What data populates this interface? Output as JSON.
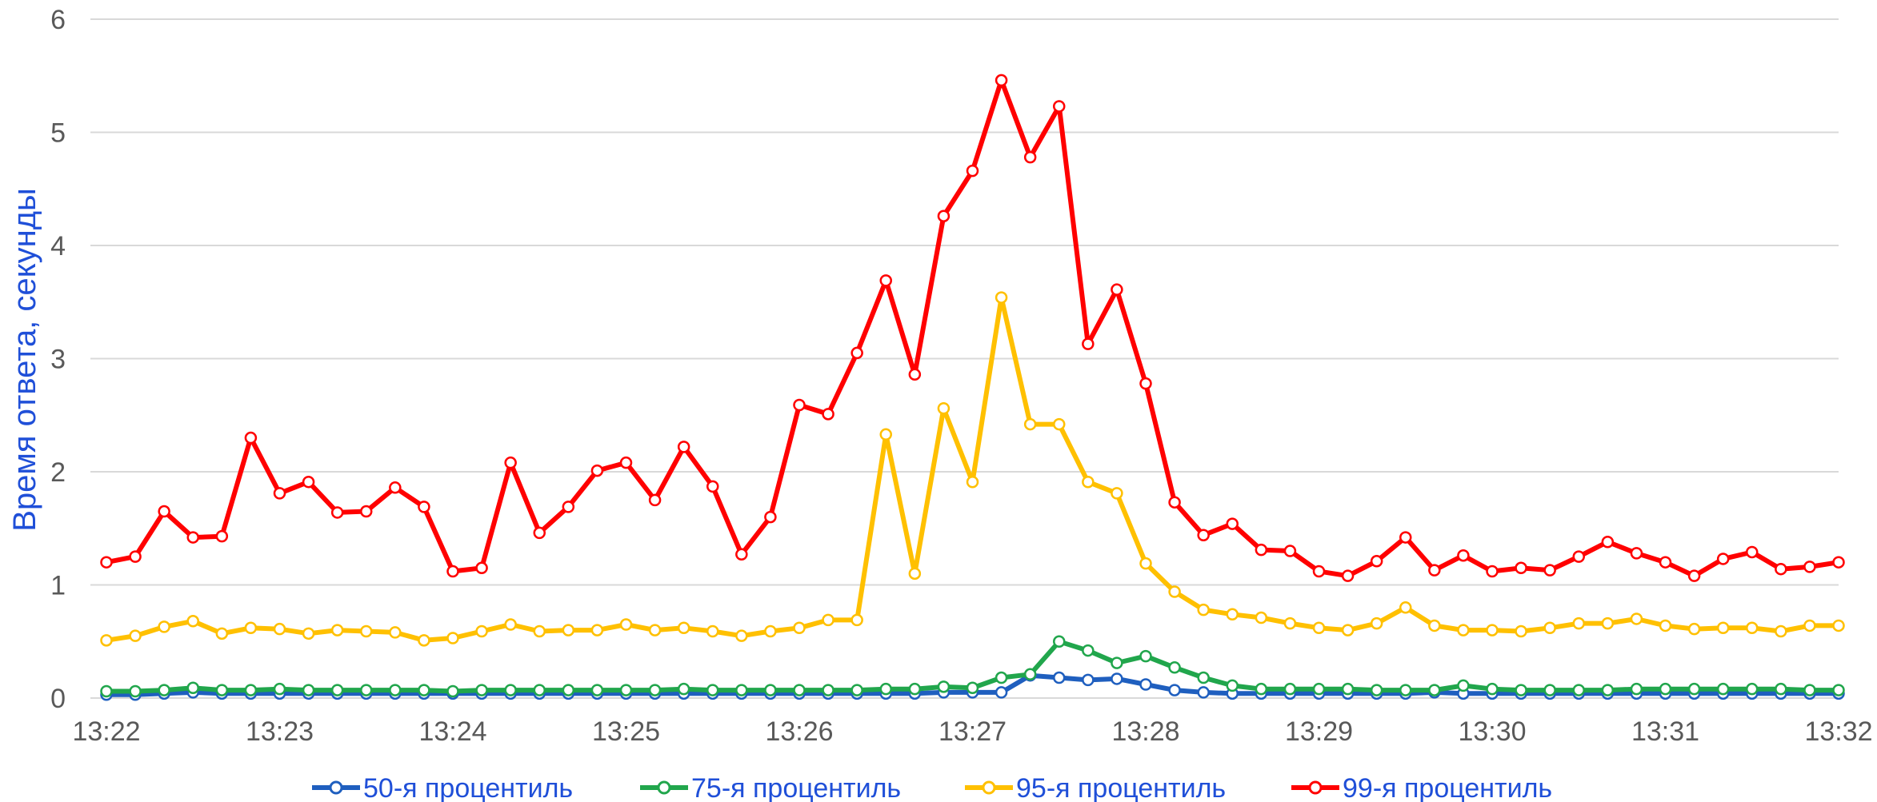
{
  "chart_data": {
    "type": "line",
    "title": "",
    "xlabel": "",
    "ylabel": "Время ответа, секунды",
    "ylim": [
      0,
      6
    ],
    "yticks": [
      "0",
      "1",
      "2",
      "3",
      "4",
      "5",
      "6"
    ],
    "xlim": [
      "13:22",
      "13:32"
    ],
    "xticks": [
      "13:22",
      "13:23",
      "13:24",
      "13:25",
      "13:26",
      "13:27",
      "13:28",
      "13:29",
      "13:30",
      "13:31",
      "13:32"
    ],
    "grid": "horizontal",
    "legend": "bottom",
    "x": [
      "13:22:00",
      "13:22:10",
      "13:22:20",
      "13:22:30",
      "13:22:40",
      "13:22:50",
      "13:23:00",
      "13:23:10",
      "13:23:20",
      "13:23:30",
      "13:23:40",
      "13:23:50",
      "13:24:00",
      "13:24:10",
      "13:24:20",
      "13:24:30",
      "13:24:40",
      "13:24:50",
      "13:25:00",
      "13:25:10",
      "13:25:20",
      "13:25:30",
      "13:25:40",
      "13:25:50",
      "13:26:00",
      "13:26:10",
      "13:26:20",
      "13:26:30",
      "13:26:40",
      "13:26:50",
      "13:27:00",
      "13:27:10",
      "13:27:20",
      "13:27:30",
      "13:27:40",
      "13:27:50",
      "13:28:00",
      "13:28:10",
      "13:28:20",
      "13:28:30",
      "13:28:40",
      "13:28:50",
      "13:29:00",
      "13:29:10",
      "13:29:20",
      "13:29:30",
      "13:29:40",
      "13:29:50",
      "13:30:00",
      "13:30:10",
      "13:30:20",
      "13:30:30",
      "13:30:40",
      "13:30:50",
      "13:31:00",
      "13:31:10",
      "13:31:20",
      "13:31:30",
      "13:31:40",
      "13:31:50",
      "13:32:00"
    ],
    "series": [
      {
        "name": "50-я процентиль",
        "color": "#1f5fbf",
        "values": [
          0.03,
          0.03,
          0.04,
          0.05,
          0.04,
          0.04,
          0.04,
          0.04,
          0.04,
          0.04,
          0.04,
          0.04,
          0.04,
          0.04,
          0.04,
          0.04,
          0.04,
          0.04,
          0.04,
          0.04,
          0.04,
          0.04,
          0.04,
          0.04,
          0.04,
          0.04,
          0.04,
          0.04,
          0.04,
          0.05,
          0.05,
          0.05,
          0.2,
          0.18,
          0.16,
          0.17,
          0.12,
          0.07,
          0.05,
          0.04,
          0.04,
          0.04,
          0.04,
          0.04,
          0.04,
          0.04,
          0.05,
          0.04,
          0.04,
          0.04,
          0.04,
          0.04,
          0.04,
          0.04,
          0.04,
          0.04,
          0.04,
          0.04,
          0.04,
          0.04,
          0.04
        ]
      },
      {
        "name": "75-я процентиль",
        "color": "#21a64c",
        "values": [
          0.06,
          0.06,
          0.07,
          0.09,
          0.07,
          0.07,
          0.08,
          0.07,
          0.07,
          0.07,
          0.07,
          0.07,
          0.06,
          0.07,
          0.07,
          0.07,
          0.07,
          0.07,
          0.07,
          0.07,
          0.08,
          0.07,
          0.07,
          0.07,
          0.07,
          0.07,
          0.07,
          0.08,
          0.08,
          0.1,
          0.09,
          0.18,
          0.21,
          0.5,
          0.42,
          0.31,
          0.37,
          0.27,
          0.18,
          0.11,
          0.08,
          0.08,
          0.08,
          0.08,
          0.07,
          0.07,
          0.07,
          0.11,
          0.08,
          0.07,
          0.07,
          0.07,
          0.07,
          0.08,
          0.08,
          0.08,
          0.08,
          0.08,
          0.08,
          0.07,
          0.07
        ]
      },
      {
        "name": "95-я процентиль",
        "color": "#ffc000",
        "values": [
          0.51,
          0.55,
          0.63,
          0.68,
          0.57,
          0.62,
          0.61,
          0.57,
          0.6,
          0.59,
          0.58,
          0.51,
          0.53,
          0.59,
          0.65,
          0.59,
          0.6,
          0.6,
          0.65,
          0.6,
          0.62,
          0.59,
          0.55,
          0.59,
          0.62,
          0.69,
          0.69,
          2.33,
          1.1,
          2.56,
          1.91,
          3.54,
          2.42,
          2.42,
          1.91,
          1.81,
          1.19,
          0.94,
          0.78,
          0.74,
          0.71,
          0.66,
          0.62,
          0.6,
          0.66,
          0.8,
          0.64,
          0.6,
          0.6,
          0.59,
          0.62,
          0.66,
          0.66,
          0.7,
          0.64,
          0.61,
          0.62,
          0.62,
          0.59,
          0.64,
          0.64
        ]
      },
      {
        "name": "99-я процентиль",
        "color": "#ff0000",
        "values": [
          1.2,
          1.25,
          1.65,
          1.42,
          1.43,
          2.3,
          1.81,
          1.91,
          1.64,
          1.65,
          1.86,
          1.69,
          1.12,
          1.15,
          2.08,
          1.46,
          1.69,
          2.01,
          2.08,
          1.75,
          2.22,
          1.87,
          1.27,
          1.6,
          2.59,
          2.51,
          3.05,
          3.69,
          2.86,
          4.26,
          4.66,
          5.46,
          4.78,
          5.23,
          3.13,
          3.61,
          2.78,
          1.73,
          1.44,
          1.54,
          1.31,
          1.3,
          1.12,
          1.08,
          1.21,
          1.42,
          1.13,
          1.26,
          1.12,
          1.15,
          1.13,
          1.25,
          1.38,
          1.28,
          1.2,
          1.08,
          1.23,
          1.29,
          1.14,
          1.16,
          1.2
        ]
      }
    ]
  }
}
